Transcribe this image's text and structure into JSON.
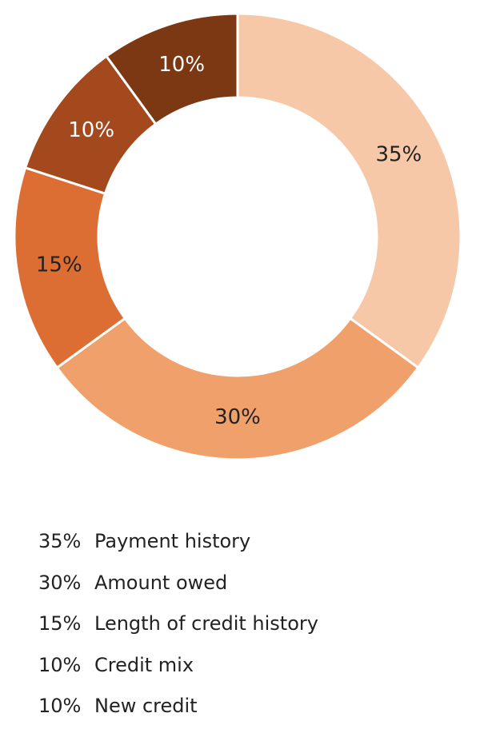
{
  "chart_data": {
    "type": "pie",
    "donut": true,
    "slices": [
      {
        "label": "Payment history",
        "value": 35,
        "value_label": "35%",
        "color": "#F6C8A8",
        "label_color": "#222222"
      },
      {
        "label": "Amount owed",
        "value": 30,
        "value_label": "30%",
        "color": "#F0A06A",
        "label_color": "#222222"
      },
      {
        "label": "Length of credit history",
        "value": 15,
        "value_label": "15%",
        "color": "#DC6E34",
        "label_color": "#222222"
      },
      {
        "label": "Credit mix",
        "value": 10,
        "value_label": "10%",
        "color": "#A4491E",
        "label_color": "#ffffff"
      },
      {
        "label": "New credit",
        "value": 10,
        "value_label": "10%",
        "color": "#7B3813",
        "label_color": "#ffffff"
      }
    ],
    "legend_position": "bottom-left",
    "start": "top",
    "direction": "clockwise"
  }
}
